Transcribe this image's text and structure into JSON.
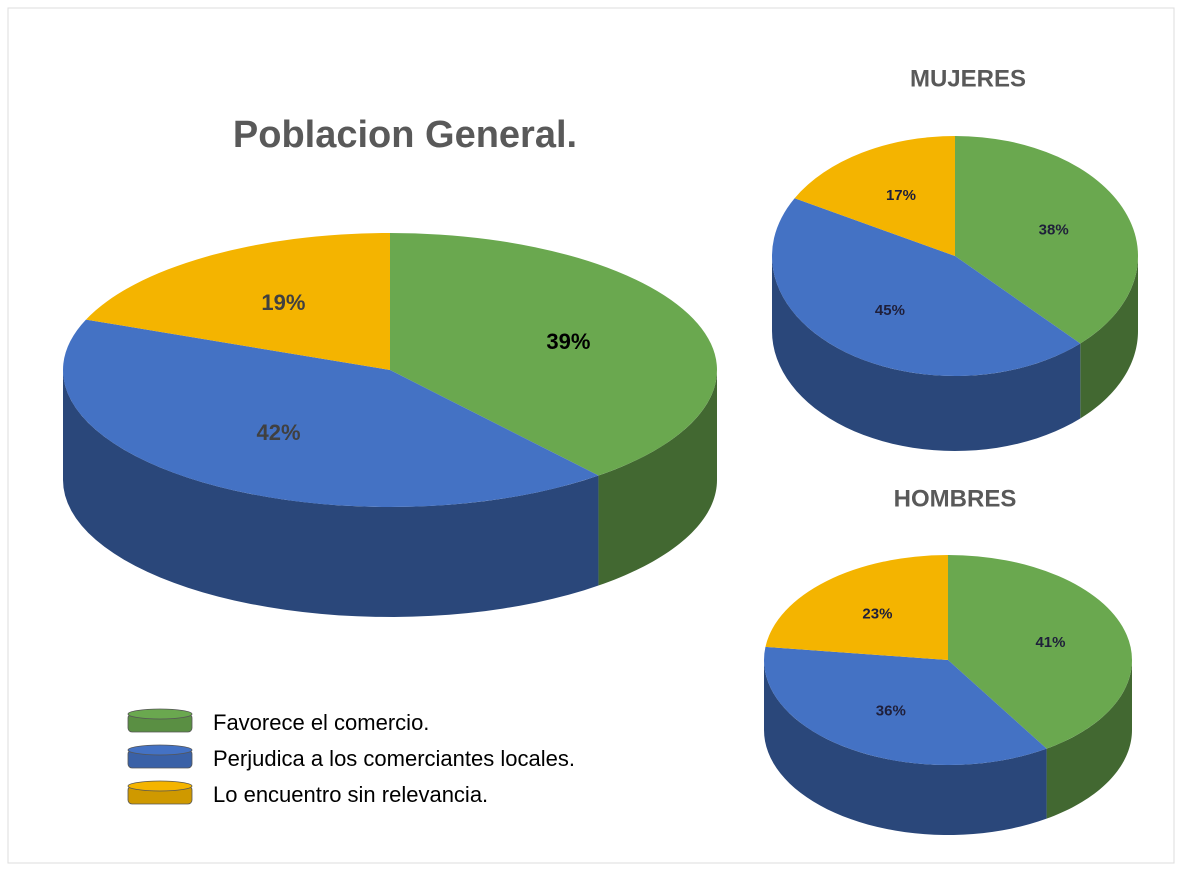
{
  "chart_data": [
    {
      "type": "pie",
      "title": "Poblacion General.",
      "categories": [
        "Favorece el comercio.",
        "Perjudica a los comerciantes locales.",
        "Lo encuentro sin relevancia."
      ],
      "values": [
        39,
        42,
        19
      ],
      "value_labels": [
        "39%",
        "42%",
        "19%"
      ],
      "colors": [
        "#6aa84f",
        "#4472c4",
        "#f4b400"
      ],
      "legend": "bottom-left"
    },
    {
      "type": "pie",
      "title": "MUJERES",
      "values": [
        38,
        45,
        17
      ],
      "value_labels": [
        "38%",
        "45%",
        "17%"
      ],
      "colors": [
        "#6aa84f",
        "#4472c4",
        "#f4b400"
      ]
    },
    {
      "type": "pie",
      "title": "HOMBRES",
      "values": [
        41,
        36,
        23
      ],
      "value_labels": [
        "41%",
        "36%",
        "23%"
      ],
      "colors": [
        "#6aa84f",
        "#4472c4",
        "#f4b400"
      ]
    }
  ]
}
